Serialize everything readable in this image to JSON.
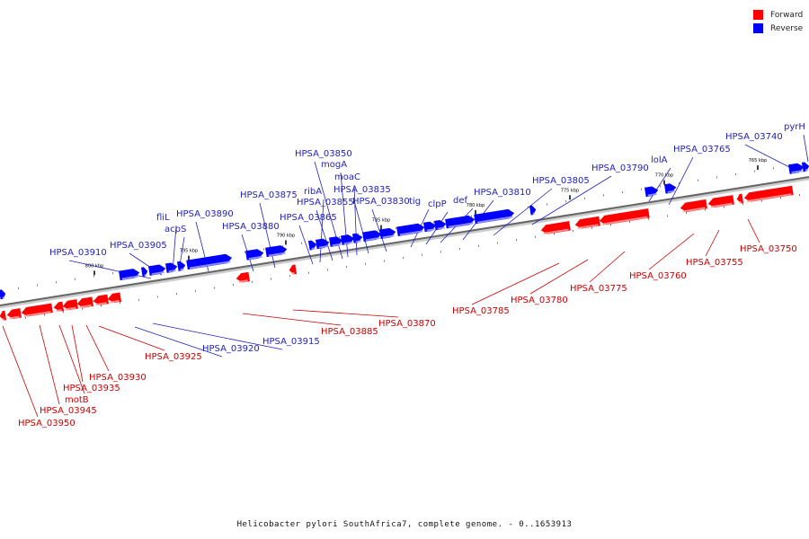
{
  "legend": {
    "forward_label": "Forward",
    "reverse_label": "Reverse",
    "forward_color": "#ff0000",
    "reverse_color": "#0000ff"
  },
  "footer": {
    "caption": "Helicobacter pylori SouthAfrica7, complete genome. - 0..1653913"
  },
  "ruler": {
    "ticks": [
      "800 kbp",
      "795 kbp",
      "790 kbp",
      "785 kbp",
      "780 kbp",
      "775 kbp",
      "770 kbp",
      "765 kbp"
    ]
  },
  "reverse_genes": [
    "HPSA_03910",
    "HPSA_03905",
    "fliL",
    "acpS",
    "HPSA_03890",
    "HPSA_03880",
    "HPSA_03875",
    "HPSA_03865",
    "ribA",
    "HPSA_03855",
    "HPSA_03850",
    "mogA",
    "moaC",
    "HPSA_03835",
    "HPSA_03830",
    "tig",
    "clpP",
    "def",
    "HPSA_03810",
    "HPSA_03805",
    "HPSA_03790",
    "lolA",
    "HPSA_03765",
    "HPSA_03740",
    "pyrH",
    "HPSA_03920",
    "HPSA_03915"
  ],
  "forward_genes": [
    "HPSA_03950",
    "HPSA_03945",
    "motB",
    "HPSA_03935",
    "HPSA_03930",
    "HPSA_03925",
    "HPSA_03885",
    "HPSA_03870",
    "HPSA_03785",
    "HPSA_03780",
    "HPSA_03775",
    "HPSA_03760",
    "HPSA_03755",
    "HPSA_03750"
  ]
}
